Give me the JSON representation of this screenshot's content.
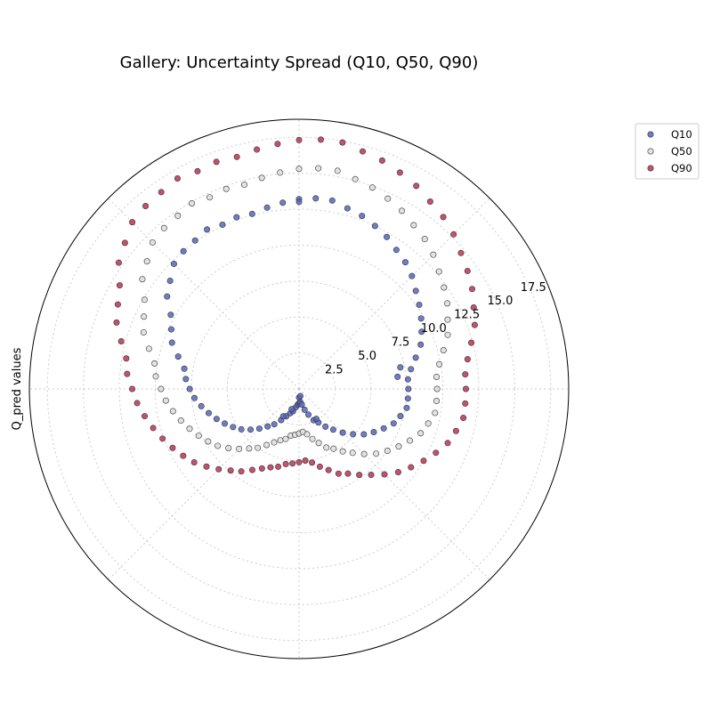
{
  "chart_data": {
    "type": "scatter",
    "projection": "polar",
    "title": "Gallery: Uncertainty Spread (Q10, Q50, Q90)",
    "ylabel": "Q_pred values",
    "r_ticks": [
      2.5,
      5.0,
      7.5,
      10.0,
      12.5,
      15.0,
      17.5
    ],
    "r_tick_labels": [
      "2.5",
      "5.0",
      "7.5",
      "10.0",
      "12.5",
      "15.0",
      "17.5"
    ],
    "r_max": 18.75,
    "angular_grid_deg": [
      0,
      45,
      90,
      135,
      180,
      225,
      270,
      315
    ],
    "grid": true,
    "legend_position": "upper-right, outside plot",
    "series": [
      {
        "name": "Q10",
        "color": "#5566bb",
        "points": [
          [
            0,
            7.6
          ],
          [
            5,
            7.6
          ],
          [
            10,
            7.9
          ],
          [
            15,
            8.4
          ],
          [
            20,
            9.0
          ],
          [
            25,
            9.4
          ],
          [
            30,
            9.8
          ],
          [
            35,
            10.2
          ],
          [
            40,
            10.6
          ],
          [
            45,
            11.1
          ],
          [
            50,
            11.5
          ],
          [
            55,
            11.8
          ],
          [
            60,
            12.2
          ],
          [
            65,
            12.5
          ],
          [
            70,
            12.8
          ],
          [
            75,
            13.0
          ],
          [
            80,
            13.3
          ],
          [
            85,
            13.3
          ],
          [
            90,
            13.2
          ],
          [
            95,
            13.0
          ],
          [
            100,
            12.8
          ],
          [
            105,
            12.6
          ],
          [
            110,
            12.7
          ],
          [
            115,
            12.6
          ],
          [
            120,
            12.8
          ],
          [
            125,
            12.6
          ],
          [
            130,
            12.5
          ],
          [
            135,
            12.3
          ],
          [
            140,
            11.7
          ],
          [
            145,
            11.2
          ],
          [
            150,
            10.3
          ],
          [
            155,
            9.8
          ],
          [
            160,
            9.4
          ],
          [
            165,
            8.7
          ],
          [
            170,
            8.1
          ],
          [
            175,
            7.9
          ],
          [
            180,
            7.6
          ],
          [
            185,
            7.3
          ],
          [
            190,
            6.9
          ],
          [
            195,
            6.5
          ],
          [
            200,
            6.1
          ],
          [
            205,
            5.7
          ],
          [
            210,
            5.3
          ],
          [
            215,
            4.9
          ],
          [
            220,
            4.4
          ],
          [
            225,
            3.9
          ],
          [
            230,
            3.4
          ],
          [
            235,
            3.0
          ],
          [
            240,
            2.5
          ],
          [
            245,
            2.1
          ],
          [
            250,
            1.8
          ],
          [
            255,
            1.6
          ],
          [
            260,
            1.3
          ],
          [
            265,
            1.1
          ],
          [
            270,
            1.0
          ],
          [
            275,
            0.9
          ],
          [
            280,
            1.1
          ],
          [
            285,
            1.5
          ],
          [
            290,
            1.9
          ],
          [
            295,
            2.4
          ],
          [
            300,
            2.7
          ],
          [
            305,
            3.2
          ],
          [
            310,
            3.7
          ],
          [
            315,
            4.3
          ],
          [
            320,
            4.9
          ],
          [
            325,
            5.5
          ],
          [
            330,
            6.0
          ],
          [
            335,
            6.5
          ],
          [
            340,
            7.0
          ],
          [
            345,
            7.3
          ],
          [
            350,
            7.6
          ],
          [
            355,
            7.6
          ],
          [
            7,
            6.9
          ],
          [
            12,
            7.2
          ],
          [
            90,
            13.0
          ],
          [
            240,
            2.2
          ],
          [
            270,
            0.6
          ],
          [
            280,
            0.5
          ],
          [
            300,
            2.4
          ],
          [
            250,
            1.5
          ]
        ]
      },
      {
        "name": "Q50",
        "color": "#dddddd",
        "points": [
          [
            0,
            9.6
          ],
          [
            5,
            9.6
          ],
          [
            10,
            9.9
          ],
          [
            15,
            10.4
          ],
          [
            20,
            11.0
          ],
          [
            25,
            11.4
          ],
          [
            30,
            11.9
          ],
          [
            35,
            12.3
          ],
          [
            40,
            12.7
          ],
          [
            45,
            13.2
          ],
          [
            50,
            13.6
          ],
          [
            55,
            13.9
          ],
          [
            60,
            14.3
          ],
          [
            65,
            14.6
          ],
          [
            70,
            14.9
          ],
          [
            75,
            15.1
          ],
          [
            80,
            15.4
          ],
          [
            85,
            15.4
          ],
          [
            90,
            15.3
          ],
          [
            95,
            15.1
          ],
          [
            100,
            14.9
          ],
          [
            105,
            14.7
          ],
          [
            110,
            14.8
          ],
          [
            115,
            14.7
          ],
          [
            120,
            14.9
          ],
          [
            125,
            14.7
          ],
          [
            130,
            14.6
          ],
          [
            135,
            14.4
          ],
          [
            140,
            13.8
          ],
          [
            145,
            13.3
          ],
          [
            150,
            12.4
          ],
          [
            155,
            11.9
          ],
          [
            160,
            11.5
          ],
          [
            165,
            10.8
          ],
          [
            170,
            10.2
          ],
          [
            175,
            10.0
          ],
          [
            180,
            9.6
          ],
          [
            185,
            9.3
          ],
          [
            190,
            8.9
          ],
          [
            195,
            8.5
          ],
          [
            200,
            8.1
          ],
          [
            205,
            7.7
          ],
          [
            210,
            7.3
          ],
          [
            215,
            6.9
          ],
          [
            220,
            6.4
          ],
          [
            225,
            5.9
          ],
          [
            230,
            5.4
          ],
          [
            235,
            5.0
          ],
          [
            240,
            4.5
          ],
          [
            245,
            4.1
          ],
          [
            250,
            3.8
          ],
          [
            255,
            3.6
          ],
          [
            260,
            3.3
          ],
          [
            265,
            3.2
          ],
          [
            270,
            3.1
          ],
          [
            275,
            3.0
          ],
          [
            280,
            3.2
          ],
          [
            285,
            3.6
          ],
          [
            290,
            4.0
          ],
          [
            295,
            4.5
          ],
          [
            300,
            4.8
          ],
          [
            305,
            5.3
          ],
          [
            310,
            5.8
          ],
          [
            315,
            6.4
          ],
          [
            320,
            7.0
          ],
          [
            325,
            7.5
          ],
          [
            330,
            8.0
          ],
          [
            335,
            8.5
          ],
          [
            340,
            9.0
          ],
          [
            345,
            9.3
          ],
          [
            350,
            9.6
          ],
          [
            355,
            9.6
          ]
        ]
      },
      {
        "name": "Q90",
        "color": "#bb3355",
        "points": [
          [
            0,
            11.6
          ],
          [
            5,
            11.6
          ],
          [
            10,
            11.9
          ],
          [
            15,
            12.4
          ],
          [
            20,
            13.0
          ],
          [
            25,
            13.4
          ],
          [
            30,
            13.9
          ],
          [
            35,
            14.3
          ],
          [
            40,
            14.7
          ],
          [
            45,
            15.2
          ],
          [
            50,
            15.6
          ],
          [
            55,
            15.9
          ],
          [
            60,
            16.3
          ],
          [
            65,
            16.6
          ],
          [
            70,
            16.9
          ],
          [
            75,
            17.1
          ],
          [
            80,
            17.4
          ],
          [
            85,
            17.4
          ],
          [
            90,
            17.3
          ],
          [
            95,
            17.1
          ],
          [
            100,
            16.9
          ],
          [
            105,
            16.7
          ],
          [
            110,
            16.8
          ],
          [
            115,
            16.7
          ],
          [
            120,
            16.9
          ],
          [
            125,
            16.7
          ],
          [
            130,
            16.6
          ],
          [
            135,
            16.4
          ],
          [
            140,
            15.8
          ],
          [
            145,
            15.3
          ],
          [
            150,
            14.4
          ],
          [
            155,
            13.9
          ],
          [
            160,
            13.5
          ],
          [
            165,
            12.8
          ],
          [
            170,
            12.2
          ],
          [
            175,
            12.0
          ],
          [
            180,
            11.6
          ],
          [
            185,
            11.3
          ],
          [
            190,
            10.9
          ],
          [
            195,
            10.5
          ],
          [
            200,
            10.1
          ],
          [
            205,
            9.7
          ],
          [
            210,
            9.3
          ],
          [
            215,
            8.9
          ],
          [
            220,
            8.4
          ],
          [
            225,
            7.9
          ],
          [
            230,
            7.4
          ],
          [
            235,
            7.0
          ],
          [
            240,
            6.5
          ],
          [
            245,
            6.1
          ],
          [
            250,
            5.8
          ],
          [
            255,
            5.6
          ],
          [
            260,
            5.3
          ],
          [
            265,
            5.2
          ],
          [
            270,
            5.1
          ],
          [
            275,
            5.0
          ],
          [
            280,
            5.2
          ],
          [
            285,
            5.6
          ],
          [
            290,
            6.0
          ],
          [
            295,
            6.5
          ],
          [
            300,
            6.8
          ],
          [
            305,
            7.3
          ],
          [
            310,
            7.8
          ],
          [
            315,
            8.4
          ],
          [
            320,
            9.0
          ],
          [
            325,
            9.5
          ],
          [
            330,
            10.0
          ],
          [
            335,
            10.5
          ],
          [
            340,
            11.0
          ],
          [
            345,
            11.3
          ],
          [
            350,
            11.6
          ],
          [
            355,
            11.6
          ]
        ]
      }
    ]
  }
}
